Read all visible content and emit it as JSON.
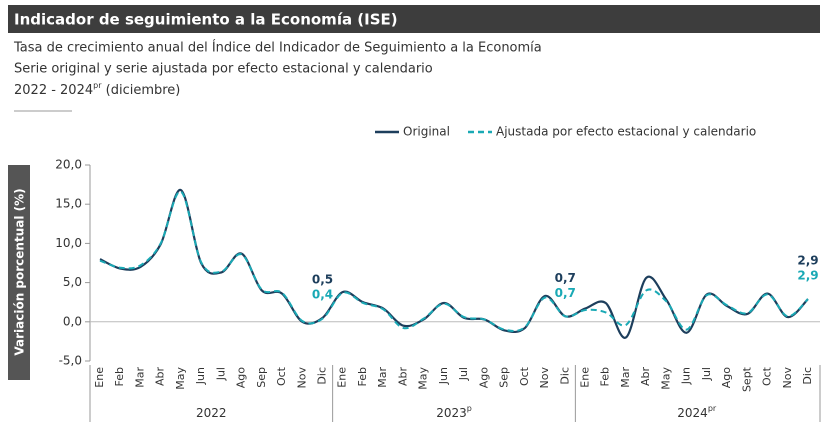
{
  "chart_data": {
    "type": "line",
    "title": "Indicador de seguimiento a la Economía (ISE)",
    "subtitle_lines": [
      "Tasa de crecimiento anual del Índice del Indicador de Seguimiento a la Economía",
      "Serie original y serie ajustada por efecto estacional y calendario"
    ],
    "period": {
      "text": "2022 - 2024",
      "sup": "pr",
      "tail": " (diciembre)"
    },
    "y_label": "Variación porcentual (%)",
    "categories": [
      "Ene",
      "Feb",
      "Mar",
      "Abr",
      "May",
      "Jun",
      "Jul",
      "Ago",
      "Sep",
      "Oct",
      "Nov",
      "Dic",
      "Ene",
      "Feb",
      "Mar",
      "Abr",
      "May",
      "Jun",
      "Jul",
      "Ago",
      "Sep",
      "Oct",
      "Nov",
      "Dic",
      "Ene",
      "Feb",
      "Mar",
      "Abr",
      "May",
      "Jun",
      "Jul",
      "Ago",
      "Sept",
      "Oct",
      "Nov",
      "Dic"
    ],
    "x_groups": [
      {
        "label": "2022",
        "sup": ""
      },
      {
        "label": "2023",
        "sup": "p"
      },
      {
        "label": "2024",
        "sup": "pr"
      }
    ],
    "ylim": [
      -5,
      20
    ],
    "yticks": [
      {
        "value": -5,
        "label": "-5,0"
      },
      {
        "value": 0,
        "label": "0,0"
      },
      {
        "value": 5,
        "label": "5,0"
      },
      {
        "value": 10,
        "label": "10,0"
      },
      {
        "value": 15,
        "label": "15,0"
      },
      {
        "value": 20,
        "label": "20,0"
      }
    ],
    "legend": "top-right",
    "series": [
      {
        "name": "Original",
        "color": "#1d3e5c",
        "dash": false,
        "values": [
          8.0,
          6.8,
          7.0,
          9.9,
          16.8,
          7.5,
          6.3,
          8.7,
          4.0,
          3.6,
          0.0,
          0.5,
          3.8,
          2.5,
          1.7,
          -0.5,
          0.3,
          2.4,
          0.5,
          0.3,
          -1.1,
          -0.8,
          3.3,
          0.7,
          1.7,
          2.4,
          -2.0,
          5.6,
          2.8,
          -1.4,
          3.5,
          2.0,
          1.0,
          3.6,
          0.6,
          2.9
        ],
        "value_labels": [
          null,
          null,
          null,
          null,
          null,
          null,
          null,
          null,
          null,
          null,
          null,
          "0,5",
          null,
          null,
          null,
          null,
          null,
          null,
          null,
          null,
          null,
          null,
          null,
          "0,7",
          null,
          null,
          null,
          null,
          null,
          null,
          null,
          null,
          null,
          null,
          null,
          "2,9"
        ]
      },
      {
        "name": "Ajustada por efecto estacional y calendario",
        "color": "#1aa9b5",
        "dash": true,
        "values": [
          7.8,
          6.9,
          7.2,
          10.0,
          16.6,
          7.6,
          6.4,
          8.6,
          4.1,
          3.7,
          0.1,
          0.4,
          3.7,
          2.4,
          1.6,
          -0.8,
          0.4,
          2.3,
          0.6,
          0.3,
          -1.0,
          -0.7,
          3.1,
          0.7,
          1.5,
          1.2,
          -0.4,
          4.0,
          2.6,
          -1.0,
          3.4,
          2.1,
          1.1,
          3.5,
          0.7,
          2.9
        ],
        "value_labels": [
          null,
          null,
          null,
          null,
          null,
          null,
          null,
          null,
          null,
          null,
          null,
          "0,4",
          null,
          null,
          null,
          null,
          null,
          null,
          null,
          null,
          null,
          null,
          null,
          "0,7",
          null,
          null,
          null,
          null,
          null,
          null,
          null,
          null,
          null,
          null,
          null,
          "2,9"
        ]
      }
    ]
  }
}
